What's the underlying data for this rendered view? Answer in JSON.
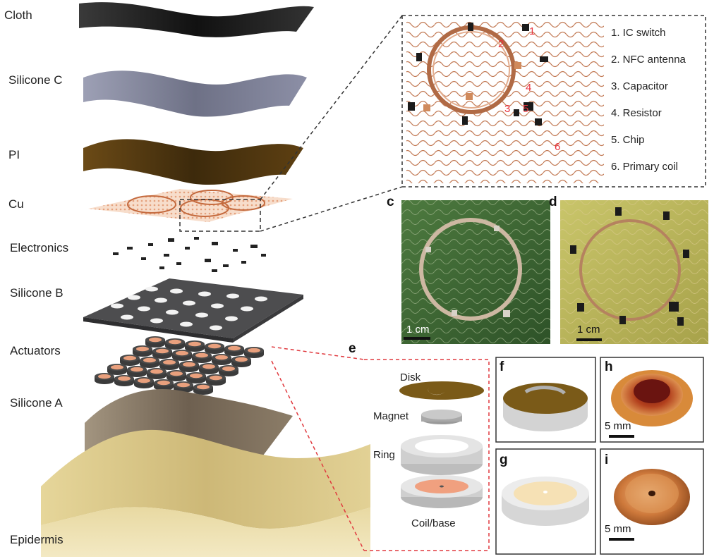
{
  "layers": {
    "cloth": "Cloth",
    "silicone_c": "Silicone C",
    "pi": "PI",
    "cu": "Cu",
    "electronics": "Electronics",
    "silicone_b": "Silicone B",
    "actuators": "Actuators",
    "silicone_a": "Silicone A",
    "epidermis": "Epidermis"
  },
  "circuit_legend": [
    "1. IC switch",
    "2. NFC antenna",
    "3. Capacitor",
    "4. Resistor",
    "5. Chip",
    "6. Primary coil"
  ],
  "circuit_markers": [
    "1",
    "2",
    "3",
    "4",
    "5",
    "6"
  ],
  "panel_tags": {
    "c": "c",
    "d": "d",
    "e": "e",
    "f": "f",
    "g": "g",
    "h": "h",
    "i": "i"
  },
  "scale_bars": {
    "c": "1 cm",
    "d": "1 cm",
    "h": "5 mm",
    "i": "5 mm"
  },
  "actuator_parts": {
    "disk": "Disk",
    "magnet": "Magnet",
    "ring": "Ring",
    "coil_base": "Coil/base"
  },
  "colors": {
    "callout_red": "#e0393e",
    "copper": "#c98a5e",
    "pcb_green": "#3e6b35",
    "pcb_yellow": "#b9b55a"
  }
}
